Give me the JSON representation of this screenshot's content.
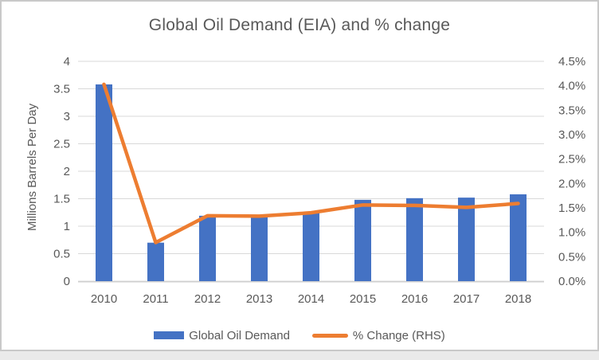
{
  "chart": {
    "title": "Global Oil Demand (EIA) and % change",
    "y_axis_title": "Millions Barrels Per Day",
    "legend": {
      "bar_label": "Global Oil Demand",
      "line_label": "% Change (RHS)"
    },
    "colors": {
      "bar": "#4472C4",
      "line": "#ED7D31",
      "text": "#595959",
      "gridline": "#D9D9D9",
      "axis_line": "#CFCFCF",
      "frame_border": "#C9C9C9"
    }
  },
  "chart_data": {
    "type": "bar",
    "subtype": "combo-bar-line-dual-axis",
    "title": "Global Oil Demand (EIA) and % change",
    "categories": [
      "2010",
      "2011",
      "2012",
      "2013",
      "2014",
      "2015",
      "2016",
      "2017",
      "2018"
    ],
    "series": [
      {
        "name": "Global Oil Demand",
        "type": "bar",
        "axis": "left",
        "values": [
          3.58,
          0.7,
          1.19,
          1.18,
          1.26,
          1.48,
          1.51,
          1.52,
          1.58
        ]
      },
      {
        "name": "% Change (RHS)",
        "type": "line",
        "axis": "right",
        "unit": "%",
        "values": [
          4.03,
          0.79,
          1.34,
          1.33,
          1.4,
          1.56,
          1.55,
          1.51,
          1.59
        ]
      }
    ],
    "left_axis": {
      "title": "Millions Barrels Per Day",
      "min": 0,
      "max": 4,
      "step": 0.5,
      "tick_labels": [
        "4",
        "3.5",
        "3",
        "2.5",
        "2",
        "1.5",
        "1",
        "0.5",
        "0"
      ]
    },
    "right_axis": {
      "min": 0,
      "max": 4.5,
      "step": 0.5,
      "unit": "%",
      "tick_labels": [
        "4.5%",
        "4.0%",
        "3.5%",
        "3.0%",
        "2.5%",
        "2.0%",
        "1.5%",
        "1.0%",
        "0.5%",
        "0.0%"
      ]
    },
    "gridlines": true,
    "legend_position": "bottom"
  }
}
